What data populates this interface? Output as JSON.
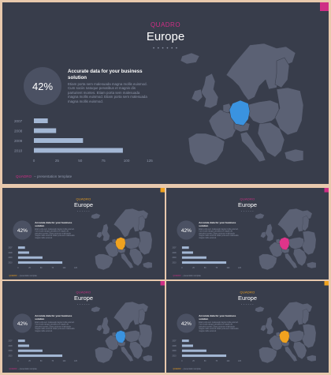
{
  "slides": [
    {
      "brand": "QUADRO",
      "title": "Europe",
      "dots": "• • • • • •",
      "percent": "42%",
      "heading": "Accurate data for your business solution",
      "body": "Etiam porta sem malesuada magna mollis euismod. Cum sociis natoque penatibus et magnis dis parturient montes. Etiam porta sem malesuada magna mollis euismod. Etiam porta sem malesuada magna mollis euismod.",
      "footer_brand": "QUADRO",
      "footer_text": "– presentation template",
      "accent": "#cf2e85",
      "highlight": "#3a93e0"
    },
    {
      "brand": "QUADRO",
      "title": "Europe",
      "dots": "• • • • • •",
      "percent": "42%",
      "heading": "Accurate data for your business solution",
      "body": "Etiam porta sem malesuada magna mollis euismod. Cum sociis natoque penatibus et magnis dis parturient montes. Etiam porta sem malesuada magna mollis euismod. Etiam porta sem malesuada magna mollis euismod.",
      "footer_brand": "QUADRO",
      "footer_text": "– presentation template",
      "accent": "#f0a21f",
      "highlight": "#f0a21f"
    },
    {
      "brand": "QUADRO",
      "title": "Europe",
      "dots": "• • • • • •",
      "percent": "42%",
      "heading": "Accurate data for your business solution",
      "body": "Etiam porta sem malesuada magna mollis euismod. Cum sociis natoque penatibus et magnis dis parturient montes. Etiam porta sem malesuada magna mollis euismod. Etiam porta sem malesuada magna mollis euismod.",
      "footer_brand": "QUADRO",
      "footer_text": "– presentation template",
      "accent": "#cf2e85",
      "highlight": "#e0348a"
    },
    {
      "brand": "QUADRO",
      "title": "Europe",
      "dots": "• • • • • •",
      "percent": "42%",
      "heading": "Accurate data for your business solution",
      "body": "Etiam porta sem malesuada magna mollis euismod. Cum sociis natoque penatibus et magnis dis parturient montes. Etiam porta sem malesuada magna mollis euismod. Etiam porta sem malesuada magna mollis euismod.",
      "footer_brand": "QUADRO",
      "footer_text": "– presentation template",
      "accent": "#cf2e85",
      "highlight": "#3a93e0"
    },
    {
      "brand": "QUADRO",
      "title": "Europe",
      "dots": "• • • • • •",
      "percent": "42%",
      "heading": "Accurate data for your business solution",
      "body": "Etiam porta sem malesuada magna mollis euismod. Cum sociis natoque penatibus et magnis dis parturient montes. Etiam porta sem malesuada magna mollis euismod. Etiam porta sem malesuada magna mollis euismod.",
      "footer_brand": "QUADRO",
      "footer_text": "– presentation template",
      "accent": "#f0a21f",
      "highlight": "#f0a21f"
    }
  ],
  "chart_data": {
    "type": "bar",
    "orientation": "horizontal",
    "categories": [
      "2007",
      "2008",
      "2009",
      "2010"
    ],
    "values": [
      15,
      24,
      53,
      96
    ],
    "xlim": [
      0,
      125
    ],
    "xticks": [
      "0",
      "25",
      "50",
      "75",
      "100",
      "125"
    ],
    "bar_color": "#a3b7d4"
  },
  "colors": {
    "background": "#383d4b",
    "map_fill": "#5b6174",
    "map_stroke": "#3a3f4d",
    "frame": "#e8c9ad"
  }
}
